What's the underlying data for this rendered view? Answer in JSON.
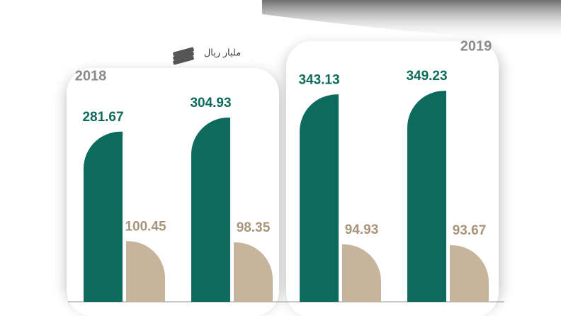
{
  "chart_data": {
    "type": "bar",
    "unit": "مليار ريال",
    "annotations": [
      "2018",
      "2019"
    ],
    "categories": [
      null,
      null,
      null,
      null
    ],
    "series": [
      {
        "color": "#0c6b5d",
        "label_color": "#0c6b5d",
        "corner": "left",
        "values": [
          281.67,
          304.93,
          343.13,
          349.23
        ]
      },
      {
        "color": "#c6b59c",
        "label_color": "#a8947a",
        "corner": "right",
        "values": [
          100.45,
          98.35,
          94.93,
          93.67
        ]
      }
    ]
  }
}
